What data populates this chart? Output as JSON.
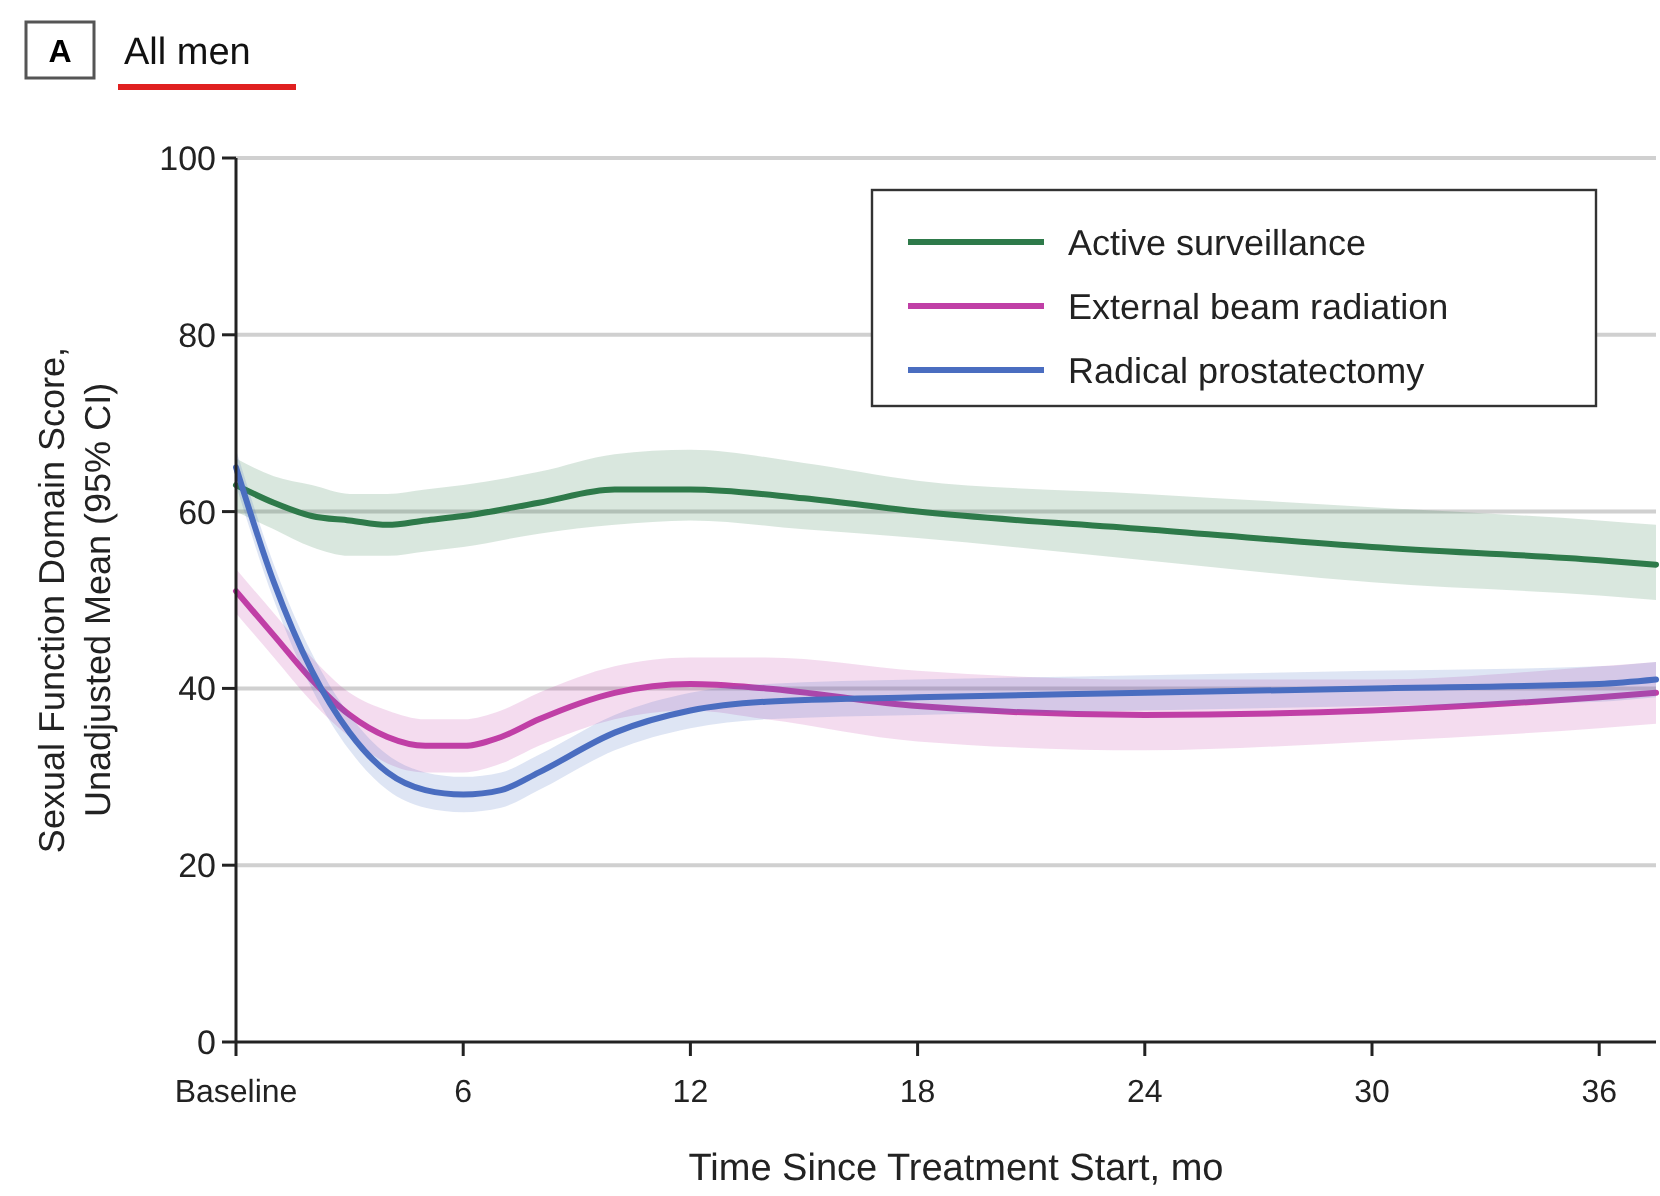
{
  "chart_data": {
    "type": "line",
    "title": "All men",
    "annotations": [
      "A"
    ],
    "xlabel": "Time Since Treatment Start, mo",
    "ylabel": "Sexual Function Domain Score, Unadjusted Mean (95% CI)",
    "xlim": [
      0,
      37.5
    ],
    "xticks": [
      {
        "value": 0,
        "label": "Baseline"
      },
      6,
      12,
      18,
      24,
      30,
      36
    ],
    "ylim": [
      0,
      100
    ],
    "yticks": [
      0,
      20,
      40,
      60,
      80,
      100
    ],
    "grid": "y",
    "legend": "top right",
    "marker": "none",
    "line_style": "solid",
    "series": [
      {
        "name": "Active surveillance",
        "color": "#2e7a4a",
        "x": [
          0,
          1,
          2,
          3,
          4,
          5,
          6,
          8,
          10,
          12,
          15,
          18,
          24,
          30,
          36,
          37.5
        ],
        "values": [
          63,
          61,
          59.5,
          59,
          58.5,
          59,
          59.5,
          61,
          62.5,
          62.5,
          61.5,
          60,
          58,
          56,
          54.5,
          54
        ],
        "lower": [
          60,
          58,
          56,
          55,
          55,
          55.5,
          56,
          57.5,
          58.5,
          59,
          58,
          57,
          54.5,
          52,
          50.5,
          50
        ],
        "upper": [
          66,
          64,
          63,
          62,
          62,
          62.5,
          63,
          64.5,
          66.5,
          67,
          65.5,
          63.5,
          62,
          60.5,
          59,
          58.5
        ]
      },
      {
        "name": "External beam radiation",
        "color": "#c03fa6",
        "x": [
          0,
          1,
          2,
          3,
          4,
          5,
          6,
          7,
          8,
          10,
          12,
          14,
          18,
          24,
          30,
          36,
          37.5
        ],
        "values": [
          51,
          46,
          41,
          37,
          34.5,
          33.5,
          33.5,
          34.5,
          36.5,
          39.5,
          40.5,
          40,
          38,
          37,
          37.5,
          39,
          39.5
        ],
        "lower": [
          48.5,
          43.5,
          38.5,
          34.5,
          31.5,
          30.5,
          30.5,
          31.5,
          33.5,
          36.5,
          37.5,
          36.5,
          34,
          33,
          34,
          35.5,
          36
        ],
        "upper": [
          53.5,
          48.5,
          43.5,
          39.5,
          37.5,
          36.5,
          36.5,
          37.5,
          39.5,
          42.5,
          43.5,
          43.5,
          42,
          41,
          41,
          42.5,
          43
        ]
      },
      {
        "name": "Radical prostatectomy",
        "color": "#4a6dc0",
        "x": [
          0,
          1,
          2,
          3,
          4,
          5,
          6,
          7,
          8,
          10,
          12,
          14,
          18,
          24,
          30,
          36,
          37.5
        ],
        "values": [
          65,
          52,
          42,
          35,
          30.5,
          28.5,
          28,
          28.5,
          30.5,
          35,
          37.5,
          38.5,
          39,
          39.5,
          40,
          40.5,
          41
        ],
        "lower": [
          63,
          50,
          40,
          33,
          28.5,
          26.5,
          26,
          26.5,
          28.5,
          33,
          35.5,
          36.5,
          37,
          37.5,
          38,
          38.5,
          39
        ],
        "upper": [
          67,
          54,
          44,
          37,
          32.5,
          30.5,
          30,
          30.5,
          32.5,
          37,
          39.5,
          40.5,
          41,
          41.5,
          42,
          42.5,
          43
        ]
      }
    ]
  }
}
